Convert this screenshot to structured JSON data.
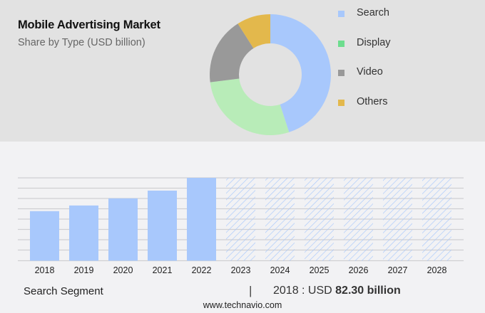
{
  "header": {
    "title": "Mobile Advertising Market",
    "subtitle": "Share by Type (USD billion)"
  },
  "legend": [
    {
      "label": "Search",
      "color": "#a8c8fc"
    },
    {
      "label": "Display",
      "color": "#6ddd8e"
    },
    {
      "label": "Video",
      "color": "#999999"
    },
    {
      "label": "Others",
      "color": "#e3b84c"
    }
  ],
  "footer": {
    "segment": "Search Segment",
    "separator": "|",
    "year_label": "2018 : USD ",
    "value_label": "82.30 billion",
    "source": "www.technavio.com"
  },
  "chart_data": [
    {
      "type": "pie",
      "title": "Mobile Advertising Market - Share by Type (USD billion)",
      "donut": true,
      "categories": [
        "Search",
        "Display",
        "Video",
        "Others"
      ],
      "values": [
        45,
        28,
        18,
        9
      ],
      "colors": [
        "#a8c8fc",
        "#b8ecb8",
        "#999999",
        "#e3b84c"
      ],
      "legend_position": "right"
    },
    {
      "type": "bar",
      "title": "Search Segment",
      "categories": [
        "2018",
        "2019",
        "2020",
        "2021",
        "2022",
        "2023",
        "2024",
        "2025",
        "2026",
        "2027",
        "2028"
      ],
      "values": [
        82.3,
        91.7,
        103.5,
        116.4,
        137.6,
        null,
        null,
        null,
        null,
        null,
        null
      ],
      "forecast_categories": [
        "2023",
        "2024",
        "2025",
        "2026",
        "2027",
        "2028"
      ],
      "forecast_style": "hatched",
      "bar_color": "#a8c8fc",
      "xlabel": "",
      "ylabel": "",
      "grid": true,
      "annotation": "2018 : USD 82.30 billion"
    }
  ]
}
